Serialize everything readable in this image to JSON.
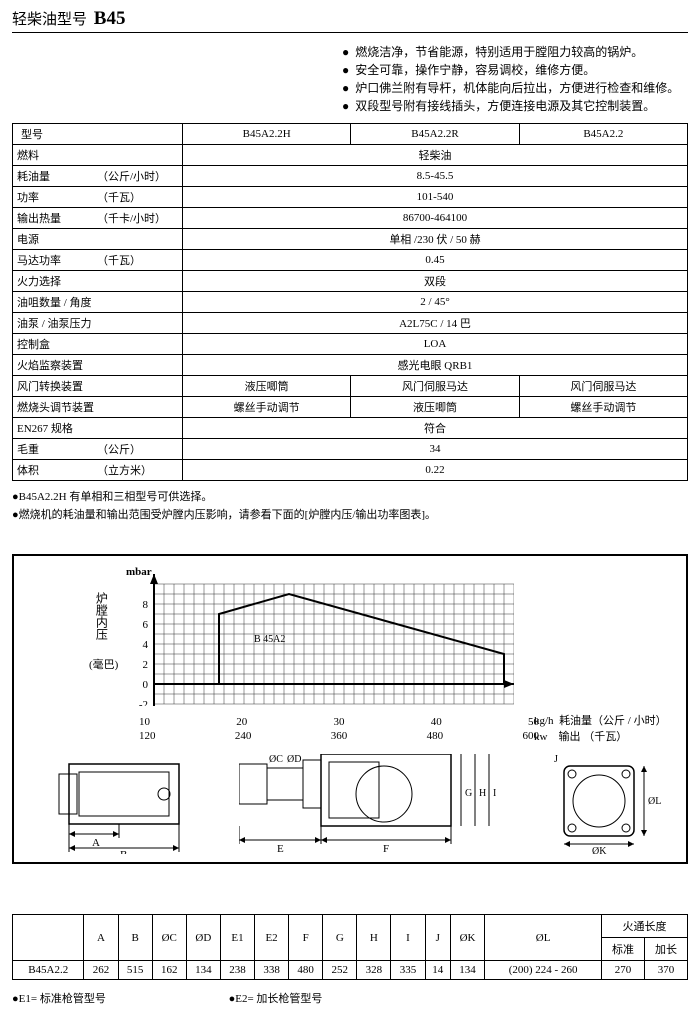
{
  "title": {
    "cn": "轻柴油型号",
    "model": "B45"
  },
  "features": [
    "燃烧洁净，节省能源，特别适用于膛阻力较高的锅炉。",
    "安全可靠，操作宁静，容易调校，维修方便。",
    "炉口佛兰附有导杆，机体能向后拉出，方便进行检查和维修。",
    "双段型号附有接线插头，方便连接电源及其它控制装置。"
  ],
  "spec_header": [
    "型号",
    "B45A2.2H",
    "B45A2.2R",
    "B45A2.2"
  ],
  "spec_rows": [
    {
      "label": "燃料",
      "unit": "",
      "value": [
        "轻柴油"
      ],
      "span": 3
    },
    {
      "label": "耗油量",
      "unit": "（公斤/小时）",
      "value": [
        "8.5-45.5"
      ],
      "span": 3
    },
    {
      "label": "功率",
      "unit": "（千瓦）",
      "value": [
        "101-540"
      ],
      "span": 3
    },
    {
      "label": "输出热量",
      "unit": "（千卡/小时）",
      "value": [
        "86700-464100"
      ],
      "span": 3
    },
    {
      "label": "电源",
      "unit": "",
      "value": [
        "单相 /230 伏 / 50 赫"
      ],
      "span": 3
    },
    {
      "label": "马达功率",
      "unit": "（千瓦）",
      "value": [
        "0.45"
      ],
      "span": 3
    },
    {
      "label": "火力选择",
      "unit": "",
      "value": [
        "双段"
      ],
      "span": 3
    },
    {
      "label": "油咀数量 / 角度",
      "unit": "",
      "value": [
        "2 / 45°"
      ],
      "span": 3
    },
    {
      "label": "油泵 / 油泵压力",
      "unit": "",
      "value": [
        "A2L75C / 14 巴"
      ],
      "span": 3
    },
    {
      "label": "控制盒",
      "unit": "",
      "value": [
        "LOA"
      ],
      "span": 3
    },
    {
      "label": "火焰监察装置",
      "unit": "",
      "value": [
        "感光电眼  QRB1"
      ],
      "span": 3
    },
    {
      "label": "风门转换装置",
      "unit": "",
      "value": [
        "液压唧筒",
        "风门伺服马达",
        "风门伺服马达"
      ],
      "span": 1
    },
    {
      "label": "燃烧头调节装置",
      "unit": "",
      "value": [
        "螺丝手动调节",
        "液压唧筒",
        "螺丝手动调节"
      ],
      "span": 1
    },
    {
      "label": "EN267 规格",
      "unit": "",
      "value": [
        "符合"
      ],
      "span": 3
    },
    {
      "label": "毛重",
      "unit": "（公斤）",
      "value": [
        "34"
      ],
      "span": 3
    },
    {
      "label": "体积",
      "unit": "（立方米）",
      "value": [
        "0.22"
      ],
      "span": 3
    }
  ],
  "notes": [
    "B45A2.2H 有单相和三相型号可供选择。",
    "燃烧机的耗油量和输出范围受炉膛内压影响，请参看下面的[炉膛内压/输出功率图表]。"
  ],
  "chart": {
    "type": "area",
    "mbar_label": "mbar",
    "ylabel": "炉膛内压",
    "ylabel_sub": "(毫巴)",
    "series_label": "B 45A2",
    "y_ticks": [
      "8",
      "6",
      "4",
      "2",
      "0",
      "-2"
    ],
    "x_ticks_top": [
      "10",
      "20",
      "30",
      "40",
      "50"
    ],
    "x_ticks_bot": [
      "120",
      "240",
      "360",
      "480",
      "600"
    ],
    "x_unit_top": "kg/h",
    "x_unit_bot": "kw",
    "x_right_top": "耗油量（公斤 / 小时）",
    "x_right_bot": "输出    （千瓦）",
    "grid_color": "#000000",
    "polyline_points": [
      [
        95,
        110
      ],
      [
        95,
        40
      ],
      [
        165,
        20
      ],
      [
        380,
        80
      ],
      [
        380,
        110
      ],
      [
        95,
        110
      ]
    ],
    "xlim": [
      5,
      52
    ],
    "ylim": [
      -2,
      9
    ]
  },
  "diagrams": {
    "d1_labels": [
      "A",
      "B"
    ],
    "d2_labels": [
      "ØC",
      "ØD",
      "E",
      "F",
      "G",
      "H",
      "I"
    ],
    "d3_labels": [
      "J",
      "ØK",
      "ØL"
    ]
  },
  "dims": {
    "headers": [
      "",
      "A",
      "B",
      "ØC",
      "ØD",
      "E1",
      "E2",
      "F",
      "G",
      "H",
      "I",
      "J",
      "ØK",
      "ØL",
      "火通长度"
    ],
    "sub": [
      "标准",
      "加长"
    ],
    "row_label": "B45A2.2",
    "row": [
      "262",
      "515",
      "162",
      "134",
      "238",
      "338",
      "480",
      "252",
      "328",
      "335",
      "14",
      "134",
      "(200) 224 - 260",
      "270",
      "370"
    ]
  },
  "footnotes": {
    "e1": "E1=  标准枪管型号",
    "e2": "E2=  加长枪管型号"
  }
}
